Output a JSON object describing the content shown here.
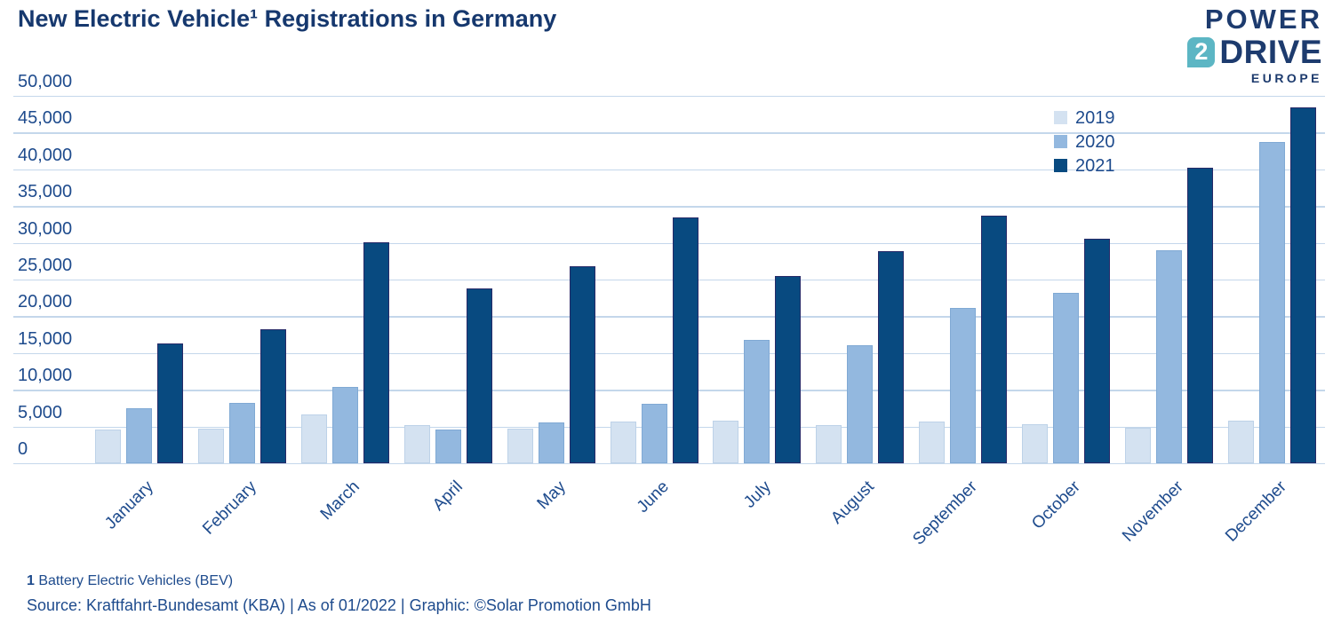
{
  "header": {
    "title": "New Electric Vehicle¹ Registrations in Germany"
  },
  "logo": {
    "word1": "POWER",
    "badge": "2",
    "word2": "DRIVE",
    "word3": "EUROPE",
    "navy": "#1d3b6e",
    "teal": "#5cb6c4"
  },
  "chart_data": {
    "type": "bar",
    "title": "New Electric Vehicle¹ Registrations in Germany",
    "categories": [
      "January",
      "February",
      "March",
      "April",
      "May",
      "June",
      "July",
      "August",
      "September",
      "October",
      "November",
      "December"
    ],
    "series": [
      {
        "name": "2019",
        "color": "#d4e2f1",
        "border": "#bdd2e8",
        "values": [
          4641,
          4654,
          6616,
          5182,
          4662,
          5616,
          5822,
          5236,
          5662,
          5273,
          4882,
          5748
        ]
      },
      {
        "name": "2020",
        "color": "#93b8df",
        "border": "#80a9d4",
        "values": [
          7492,
          8154,
          10329,
          4635,
          5578,
          8119,
          16798,
          16076,
          21188,
          23158,
          28965,
          43671
        ]
      },
      {
        "name": "2021",
        "color": "#084a80",
        "border": "#272a68",
        "values": [
          16315,
          18278,
          30101,
          23816,
          26786,
          33420,
          25464,
          28860,
          33655,
          30560,
          40270,
          48436
        ]
      }
    ],
    "xlabel": "",
    "ylabel": "",
    "ylim": [
      0,
      50000
    ],
    "ytick_step": 5000,
    "ytick_labels": [
      "0",
      "5,000",
      "10,000",
      "15,000",
      "20,000",
      "25,000",
      "30,000",
      "35,000",
      "40,000",
      "45,000",
      "50,000"
    ],
    "grid": "horizontal",
    "gridline_color": "#c4d7eb",
    "legend_position": "top-right-inside",
    "x_tick_rotation": -45
  },
  "footer": {
    "footnote_marker": "1",
    "footnote_text": "Battery Electric Vehicles (BEV)",
    "source": "Source: Kraftfahrt-Bundesamt (KBA) | As of 01/2022 | Graphic: ©Solar Promotion GmbH"
  }
}
